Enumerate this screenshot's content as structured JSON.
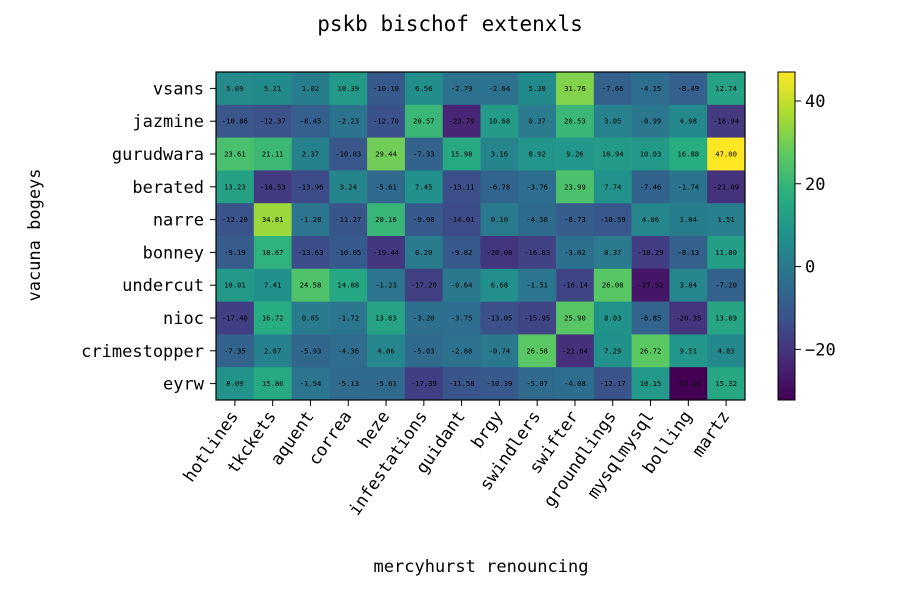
{
  "chart_data": {
    "type": "heatmap",
    "title": "pskb bischof extenxls",
    "xlabel": "mercyhurst renouncing",
    "ylabel": "vacuna bogeys",
    "x_categories": [
      "hotlines",
      "tkckets",
      "aquent",
      "correa",
      "heze",
      "infestations",
      "guidant",
      "brgy",
      "swindlers",
      "swifter",
      "groundlings",
      "mysqlmysql",
      "bolling",
      "martz"
    ],
    "y_categories": [
      "vsans",
      "jazmine",
      "gurudwara",
      "berated",
      "narre",
      "bonney",
      "undercut",
      "nioc",
      "crimestopper",
      "eyrw"
    ],
    "values": [
      [
        5.09,
        5.21,
        1.02,
        10.39,
        -10.1,
        6.56,
        -2.79,
        -2.64,
        5.3,
        31.76,
        -7.66,
        -4.15,
        -8.49,
        12.74
      ],
      [
        -10.86,
        -12.37,
        -8.45,
        -2.23,
        -12.7,
        20.57,
        -23.79,
        10.68,
        0.37,
        20.53,
        3.05,
        -0.99,
        4.98,
        -18.94
      ],
      [
        23.61,
        21.11,
        2.37,
        -10.83,
        29.44,
        -7.33,
        15.98,
        3.16,
        8.92,
        9.26,
        10.94,
        10.03,
        16.88,
        47.0
      ],
      [
        13.23,
        -18.53,
        -13.96,
        3.24,
        -5.61,
        7.45,
        -13.11,
        -6.78,
        -3.76,
        23.99,
        7.74,
        -7.46,
        -1.74,
        -21.09
      ],
      [
        -12.2,
        34.81,
        -1.28,
        -11.27,
        20.16,
        -9.9,
        -14.01,
        0.1,
        -4.58,
        -8.73,
        -10.59,
        4.06,
        1.04,
        1.51
      ],
      [
        -9.19,
        18.67,
        -13.63,
        -10.05,
        -19.44,
        0.2,
        -9.82,
        -20.08,
        -16.83,
        -3.02,
        0.37,
        -18.29,
        -8.13,
        11.8
      ],
      [
        10.01,
        7.41,
        24.58,
        14.88,
        -1.23,
        -17.2,
        -0.64,
        6.68,
        -1.51,
        -16.14,
        26.08,
        -27.52,
        3.84,
        -7.2
      ],
      [
        -17.4,
        16.72,
        0.65,
        -1.72,
        13.63,
        -3.2,
        -3.75,
        -13.05,
        -15.95,
        25.9,
        8.03,
        -6.85,
        -20.35,
        13.89
      ],
      [
        -7.35,
        2.07,
        -5.93,
        -4.36,
        4.06,
        -5.03,
        -2.8,
        -0.74,
        26.58,
        -21.64,
        7.29,
        26.72,
        9.51,
        4.83
      ],
      [
        8.09,
        15.86,
        -1.54,
        -5.13,
        -5.61,
        -17.39,
        -11.58,
        -10.39,
        -5.07,
        -4.08,
        -12.17,
        10.15,
        -32.24,
        15.32
      ]
    ],
    "vmin": -32.24,
    "vmax": 47.0,
    "colormap": "viridis",
    "colorbar_ticks": [
      40,
      20,
      0,
      -20
    ],
    "colorbar_tick_labels": [
      "40",
      "20",
      "0",
      "−20"
    ],
    "cell_labels": true,
    "grid": false
  }
}
